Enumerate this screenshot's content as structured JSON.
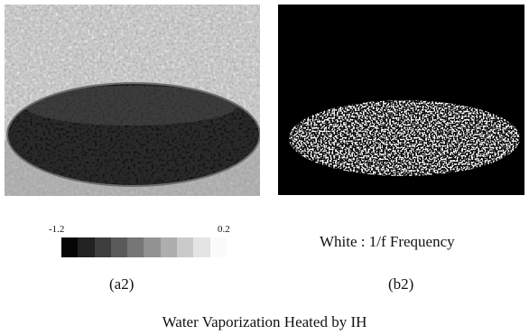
{
  "panel_a2": {
    "label": "(a2)",
    "scale": {
      "min_label": "-1.2",
      "max_label": "0.2",
      "colors": [
        "#050505",
        "#222222",
        "#3e3e3e",
        "#5a5a5a",
        "#767676",
        "#929292",
        "#aeaeae",
        "#cacaca",
        "#e4e4e4",
        "#fbfbfb"
      ]
    }
  },
  "panel_b2": {
    "label": "(b2)",
    "legend": "White : 1/f Frequency"
  },
  "caption": "Water Vaporization Heated by IH"
}
